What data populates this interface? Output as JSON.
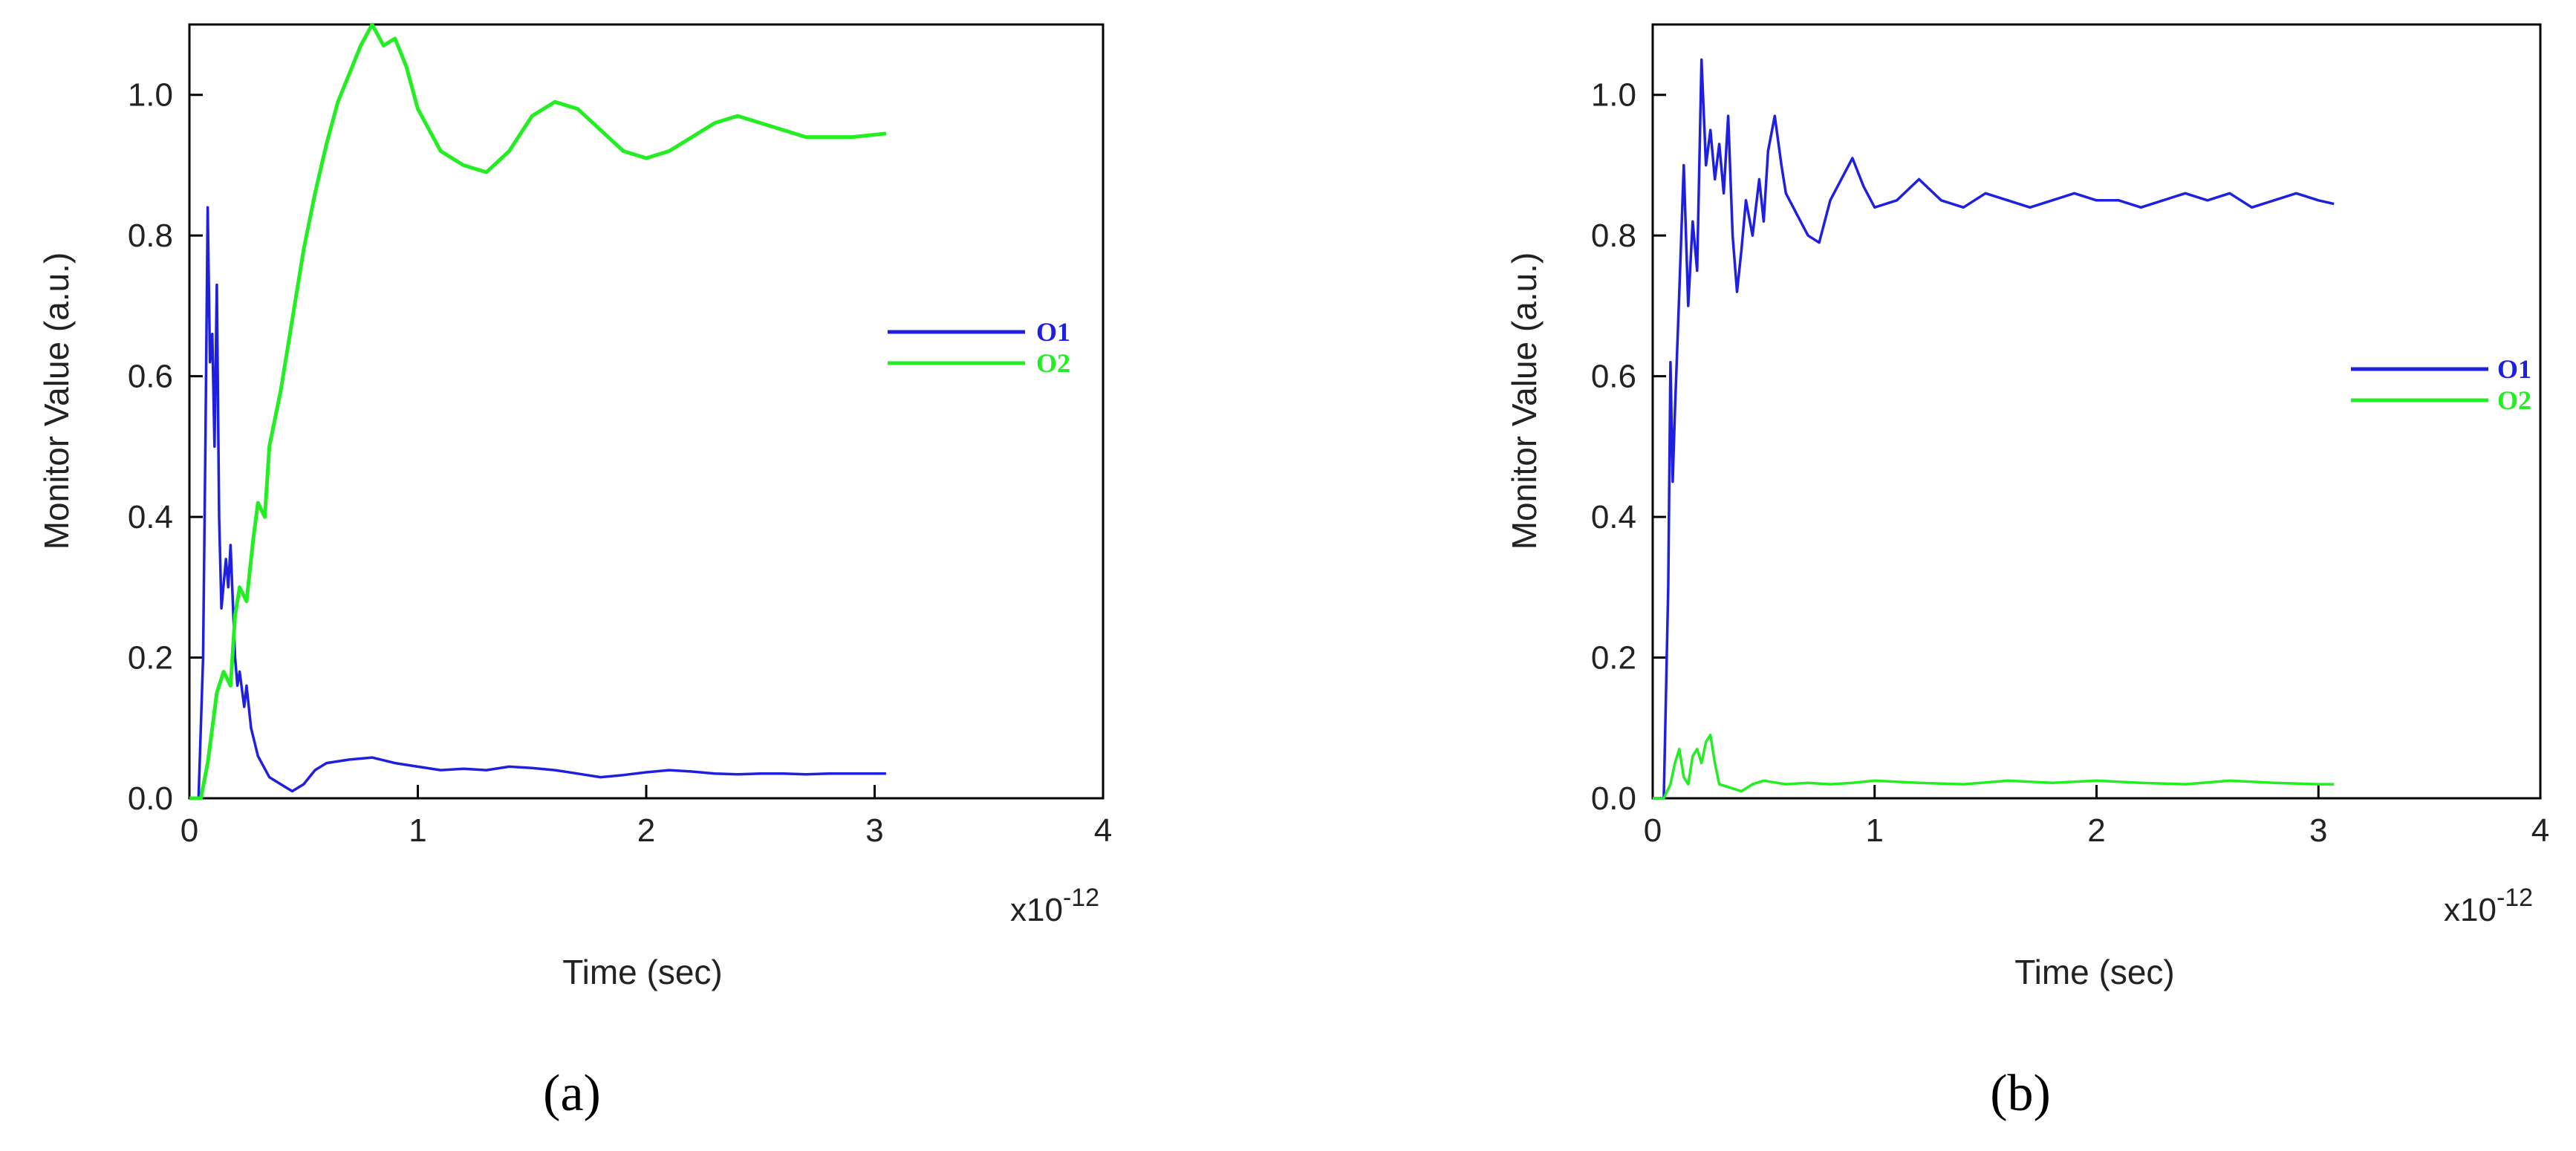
{
  "chart_data": [
    {
      "type": "line",
      "panel_label": "(a)",
      "xlabel": "Time (sec)",
      "ylabel": "Monitor Value (a.u.)",
      "x_multiplier": "x10",
      "x_exponent": "-12",
      "xlim": [
        0,
        4
      ],
      "ylim": [
        0,
        1.1
      ],
      "xticks": [
        "0",
        "1",
        "2",
        "3",
        "4"
      ],
      "yticks": [
        "0.0",
        "0.2",
        "0.4",
        "0.6",
        "0.8",
        "1.0"
      ],
      "grid": false,
      "legend_position": "right-middle",
      "series": [
        {
          "name": "O1",
          "color": "#1f1fe0",
          "x": [
            0.0,
            0.04,
            0.06,
            0.07,
            0.08,
            0.09,
            0.1,
            0.11,
            0.12,
            0.13,
            0.14,
            0.16,
            0.17,
            0.18,
            0.19,
            0.2,
            0.21,
            0.22,
            0.24,
            0.25,
            0.27,
            0.3,
            0.35,
            0.4,
            0.45,
            0.5,
            0.55,
            0.6,
            0.7,
            0.8,
            0.9,
            1.0,
            1.1,
            1.2,
            1.3,
            1.4,
            1.5,
            1.6,
            1.7,
            1.8,
            1.9,
            2.0,
            2.1,
            2.2,
            2.3,
            2.4,
            2.5,
            2.6,
            2.7,
            2.8,
            2.9,
            3.05
          ],
          "y": [
            0.0,
            0.0,
            0.2,
            0.5,
            0.84,
            0.62,
            0.66,
            0.5,
            0.73,
            0.4,
            0.27,
            0.34,
            0.3,
            0.36,
            0.28,
            0.2,
            0.16,
            0.18,
            0.13,
            0.16,
            0.1,
            0.06,
            0.03,
            0.02,
            0.01,
            0.02,
            0.04,
            0.05,
            0.055,
            0.058,
            0.05,
            0.045,
            0.04,
            0.042,
            0.04,
            0.045,
            0.043,
            0.04,
            0.035,
            0.03,
            0.033,
            0.037,
            0.04,
            0.038,
            0.035,
            0.034,
            0.035,
            0.035,
            0.034,
            0.035,
            0.035,
            0.035
          ]
        },
        {
          "name": "O2",
          "color": "#22ee22",
          "x": [
            0.0,
            0.05,
            0.08,
            0.1,
            0.12,
            0.15,
            0.18,
            0.2,
            0.22,
            0.25,
            0.28,
            0.3,
            0.33,
            0.35,
            0.4,
            0.45,
            0.5,
            0.55,
            0.6,
            0.65,
            0.7,
            0.75,
            0.8,
            0.85,
            0.9,
            0.95,
            1.0,
            1.1,
            1.2,
            1.3,
            1.4,
            1.5,
            1.6,
            1.7,
            1.8,
            1.9,
            2.0,
            2.1,
            2.2,
            2.3,
            2.4,
            2.5,
            2.6,
            2.7,
            2.8,
            2.9,
            3.05
          ],
          "y": [
            0.0,
            0.0,
            0.05,
            0.1,
            0.15,
            0.18,
            0.16,
            0.26,
            0.3,
            0.28,
            0.37,
            0.42,
            0.4,
            0.5,
            0.58,
            0.68,
            0.78,
            0.86,
            0.93,
            0.99,
            1.03,
            1.07,
            1.1,
            1.07,
            1.08,
            1.04,
            0.98,
            0.92,
            0.9,
            0.89,
            0.92,
            0.97,
            0.99,
            0.98,
            0.95,
            0.92,
            0.91,
            0.92,
            0.94,
            0.96,
            0.97,
            0.96,
            0.95,
            0.94,
            0.94,
            0.94,
            0.945
          ]
        }
      ]
    },
    {
      "type": "line",
      "panel_label": "(b)",
      "xlabel": "Time (sec)",
      "ylabel": "Monitor Value (a.u.)",
      "x_multiplier": "x10",
      "x_exponent": "-12",
      "xlim": [
        0,
        4
      ],
      "ylim": [
        0,
        1.1
      ],
      "xticks": [
        "0",
        "1",
        "2",
        "3",
        "4"
      ],
      "yticks": [
        "0.0",
        "0.2",
        "0.4",
        "0.6",
        "0.8",
        "1.0"
      ],
      "grid": false,
      "legend_position": "right-middle",
      "series": [
        {
          "name": "O1",
          "color": "#1f1fe0",
          "x": [
            0.0,
            0.05,
            0.07,
            0.08,
            0.09,
            0.1,
            0.12,
            0.14,
            0.16,
            0.18,
            0.2,
            0.22,
            0.24,
            0.26,
            0.28,
            0.3,
            0.32,
            0.34,
            0.36,
            0.38,
            0.4,
            0.42,
            0.45,
            0.48,
            0.5,
            0.52,
            0.55,
            0.58,
            0.6,
            0.65,
            0.7,
            0.75,
            0.8,
            0.85,
            0.9,
            0.95,
            1.0,
            1.1,
            1.2,
            1.3,
            1.4,
            1.5,
            1.6,
            1.7,
            1.8,
            1.9,
            2.0,
            2.1,
            2.2,
            2.3,
            2.4,
            2.5,
            2.6,
            2.7,
            2.8,
            2.9,
            3.0,
            3.07
          ],
          "y": [
            0.0,
            0.0,
            0.3,
            0.62,
            0.45,
            0.55,
            0.72,
            0.9,
            0.7,
            0.82,
            0.75,
            1.05,
            0.9,
            0.95,
            0.88,
            0.93,
            0.86,
            0.97,
            0.8,
            0.72,
            0.78,
            0.85,
            0.8,
            0.88,
            0.82,
            0.92,
            0.97,
            0.9,
            0.86,
            0.83,
            0.8,
            0.79,
            0.85,
            0.88,
            0.91,
            0.87,
            0.84,
            0.85,
            0.88,
            0.85,
            0.84,
            0.86,
            0.85,
            0.84,
            0.85,
            0.86,
            0.85,
            0.85,
            0.84,
            0.85,
            0.86,
            0.85,
            0.86,
            0.84,
            0.85,
            0.86,
            0.85,
            0.845
          ]
        },
        {
          "name": "O2",
          "color": "#22ee22",
          "x": [
            0.0,
            0.05,
            0.08,
            0.1,
            0.12,
            0.14,
            0.16,
            0.18,
            0.2,
            0.22,
            0.24,
            0.26,
            0.28,
            0.3,
            0.35,
            0.4,
            0.45,
            0.5,
            0.6,
            0.7,
            0.8,
            0.9,
            1.0,
            1.2,
            1.4,
            1.6,
            1.8,
            2.0,
            2.2,
            2.4,
            2.6,
            2.8,
            3.0,
            3.07
          ],
          "y": [
            0.0,
            0.0,
            0.02,
            0.05,
            0.07,
            0.03,
            0.02,
            0.06,
            0.07,
            0.05,
            0.08,
            0.09,
            0.05,
            0.02,
            0.015,
            0.01,
            0.02,
            0.025,
            0.02,
            0.022,
            0.02,
            0.022,
            0.025,
            0.022,
            0.02,
            0.025,
            0.022,
            0.025,
            0.022,
            0.02,
            0.025,
            0.022,
            0.02,
            0.02
          ]
        }
      ]
    }
  ]
}
